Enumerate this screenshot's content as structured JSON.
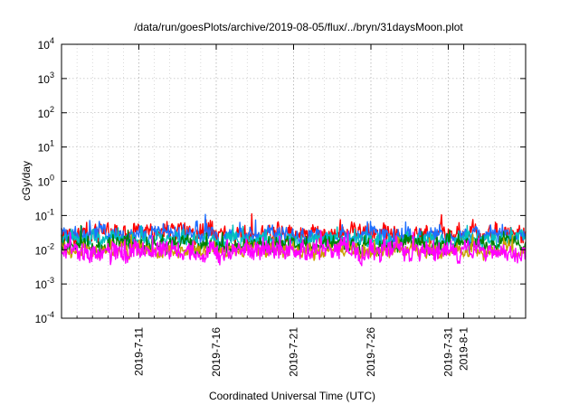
{
  "chart_data": {
    "type": "line",
    "title": "/data/run/goesPlots/archive/2019-08-05/flux/../bryn/31daysMoon.plot",
    "xlabel": "Coordinated Universal Time (UTC)",
    "ylabel": "cGy/day",
    "yscale": "log",
    "ylim": [
      0.0001,
      10000
    ],
    "xlim": [
      "2019-07-06",
      "2019-08-05"
    ],
    "grid": true,
    "y_ticks": [
      {
        "value": 0.0001,
        "base": "10",
        "exp": "-4"
      },
      {
        "value": 0.001,
        "base": "10",
        "exp": "-3"
      },
      {
        "value": 0.01,
        "base": "10",
        "exp": "-2"
      },
      {
        "value": 0.1,
        "base": "10",
        "exp": "-1"
      },
      {
        "value": 1,
        "base": "10",
        "exp": "0"
      },
      {
        "value": 10,
        "base": "10",
        "exp": "1"
      },
      {
        "value": 100,
        "base": "10",
        "exp": "2"
      },
      {
        "value": 1000,
        "base": "10",
        "exp": "3"
      },
      {
        "value": 10000,
        "base": "10",
        "exp": "4"
      }
    ],
    "x_ticks": [
      {
        "value": "2019-07-11",
        "label": "2019-7-11"
      },
      {
        "value": "2019-07-16",
        "label": "2019-7-16"
      },
      {
        "value": "2019-07-21",
        "label": "2019-7-21"
      },
      {
        "value": "2019-07-26",
        "label": "2019-7-26"
      },
      {
        "value": "2019-07-31",
        "label": "2019-7-31"
      },
      {
        "value": "2019-08-01",
        "label": "2019-8-1"
      }
    ],
    "series": [
      {
        "color": "#ff0000",
        "level": 0.03,
        "spread": 0.35,
        "values": []
      },
      {
        "color": "#1e6fff",
        "level": 0.027,
        "spread": 0.3,
        "values": []
      },
      {
        "color": "#00c0c0",
        "level": 0.02,
        "spread": 0.25,
        "values": []
      },
      {
        "color": "#008000",
        "level": 0.014,
        "spread": 0.25,
        "values": []
      },
      {
        "color": "#c8a000",
        "level": 0.009,
        "spread": 0.2,
        "values": []
      },
      {
        "color": "#ff00ff",
        "level": 0.009,
        "spread": 0.45,
        "values": []
      }
    ]
  }
}
